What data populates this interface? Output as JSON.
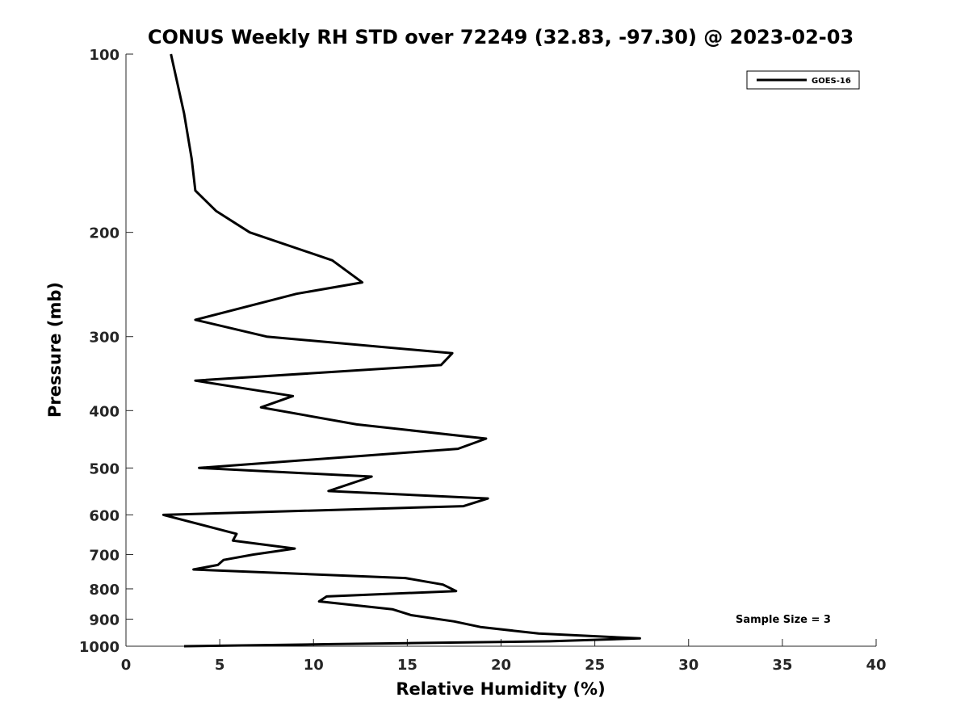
{
  "chart_data": {
    "type": "line",
    "title": "CONUS Weekly RH STD over 72249 (32.83, -97.30) @ 2023-02-03",
    "xlabel": "Relative Humidity (%)",
    "ylabel": "Pressure (mb)",
    "xlim": [
      0,
      40
    ],
    "ylim": [
      100,
      1000
    ],
    "y_scale": "log",
    "y_reversed": true,
    "x_ticks": [
      0,
      5,
      10,
      15,
      20,
      25,
      30,
      35,
      40
    ],
    "y_ticks": [
      100,
      200,
      300,
      400,
      500,
      600,
      700,
      800,
      900,
      1000
    ],
    "grid": false,
    "legend_position": "top-right",
    "annotation": "Sample Size = 3",
    "series": [
      {
        "name": "GOES-16",
        "color": "#000000",
        "points": [
          [
            2.4,
            100
          ],
          [
            3.1,
            126
          ],
          [
            3.5,
            150
          ],
          [
            3.7,
            170
          ],
          [
            4.8,
            184
          ],
          [
            6.6,
            200
          ],
          [
            11.0,
            223
          ],
          [
            12.6,
            243
          ],
          [
            9.1,
            254
          ],
          [
            3.7,
            281
          ],
          [
            7.5,
            300
          ],
          [
            17.4,
            320
          ],
          [
            16.8,
            335
          ],
          [
            3.7,
            356
          ],
          [
            8.9,
            378
          ],
          [
            7.2,
            395
          ],
          [
            12.3,
            422
          ],
          [
            19.2,
            446
          ],
          [
            17.7,
            464
          ],
          [
            3.9,
            500
          ],
          [
            13.1,
            517
          ],
          [
            10.8,
            547
          ],
          [
            19.3,
            563
          ],
          [
            18.0,
            580
          ],
          [
            2.0,
            600
          ],
          [
            5.9,
            646
          ],
          [
            5.7,
            663
          ],
          [
            9.0,
            684
          ],
          [
            6.8,
            700
          ],
          [
            5.2,
            715
          ],
          [
            4.9,
            729
          ],
          [
            3.6,
            742
          ],
          [
            14.9,
            767
          ],
          [
            16.9,
            787
          ],
          [
            17.6,
            807
          ],
          [
            10.7,
            824
          ],
          [
            10.3,
            840
          ],
          [
            14.2,
            866
          ],
          [
            15.2,
            886
          ],
          [
            17.5,
            908
          ],
          [
            18.9,
            928
          ],
          [
            22.0,
            952
          ],
          [
            27.4,
            970
          ],
          [
            22.6,
            981
          ],
          [
            15.0,
            988
          ],
          [
            11.0,
            992
          ],
          [
            3.1,
            1000
          ]
        ]
      }
    ]
  }
}
